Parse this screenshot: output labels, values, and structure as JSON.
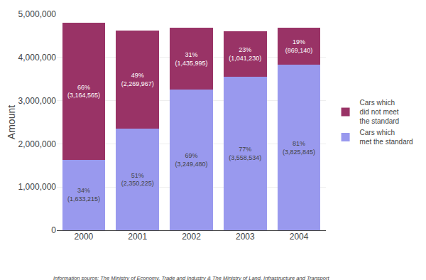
{
  "chart_data": {
    "type": "bar",
    "stacked": true,
    "categories": [
      "2000",
      "2001",
      "2002",
      "2003",
      "2004"
    ],
    "series": [
      {
        "name": "Cars which\nmet the standard",
        "color": "#9999ee",
        "values": [
          1633215,
          2350225,
          3249480,
          3558534,
          3825845
        ],
        "value_labels": [
          "34%\n(1,633,215)",
          "51%\n(2,350,225)",
          "69%\n(3,249,480)",
          "77%\n(3,558,534)",
          "81%\n(3,825,845)"
        ]
      },
      {
        "name": "Cars which\ndid not meet\nthe standard",
        "color": "#993366",
        "values": [
          3164565,
          2269967,
          1435995,
          1041230,
          869140
        ],
        "value_labels": [
          "66%\n(3,164,565)",
          "49%\n(2,269,967)",
          "31%\n(1,435,995)",
          "23%\n(1,041,230)",
          "19%\n(869,140)"
        ]
      }
    ],
    "ylabel": "Amount",
    "ylim": [
      0,
      5000000
    ],
    "yticks": [
      0,
      {
        "value": 1000000,
        "label": "1,000,000"
      },
      {
        "value": 2000000,
        "label": "2,000,000"
      },
      {
        "value": 3000000,
        "label": "3,000,000"
      },
      {
        "value": 4000000,
        "label": "4,000,000"
      },
      {
        "value": 5000000,
        "label": "5,000,000"
      }
    ],
    "grid": true,
    "legend": "right",
    "data_labels": true,
    "annotations": [
      "Information source: The Ministry of Economy, Trade and Industry & The Ministry of Land, Infrastructure and Transport"
    ]
  }
}
